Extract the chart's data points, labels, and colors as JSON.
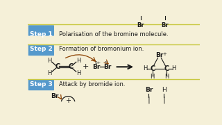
{
  "bg_color": "#f5f0d8",
  "border_color": "#c8c840",
  "step_box_color": "#5599cc",
  "step_text_color": "#ffffff",
  "text_color": "#1a1a1a",
  "dark_color": "#111111",
  "arrow_color": "#8B4000",
  "step1_label": "Step 1",
  "step1_text": "Polarisation of the bromine molecule.",
  "step2_label": "Step 2",
  "step2_text": "Formation of bromonium ion.",
  "step3_label": "Step 3",
  "step3_text": "Attack by bromide ion.",
  "figsize": [
    3.2,
    1.8
  ],
  "dpi": 100
}
